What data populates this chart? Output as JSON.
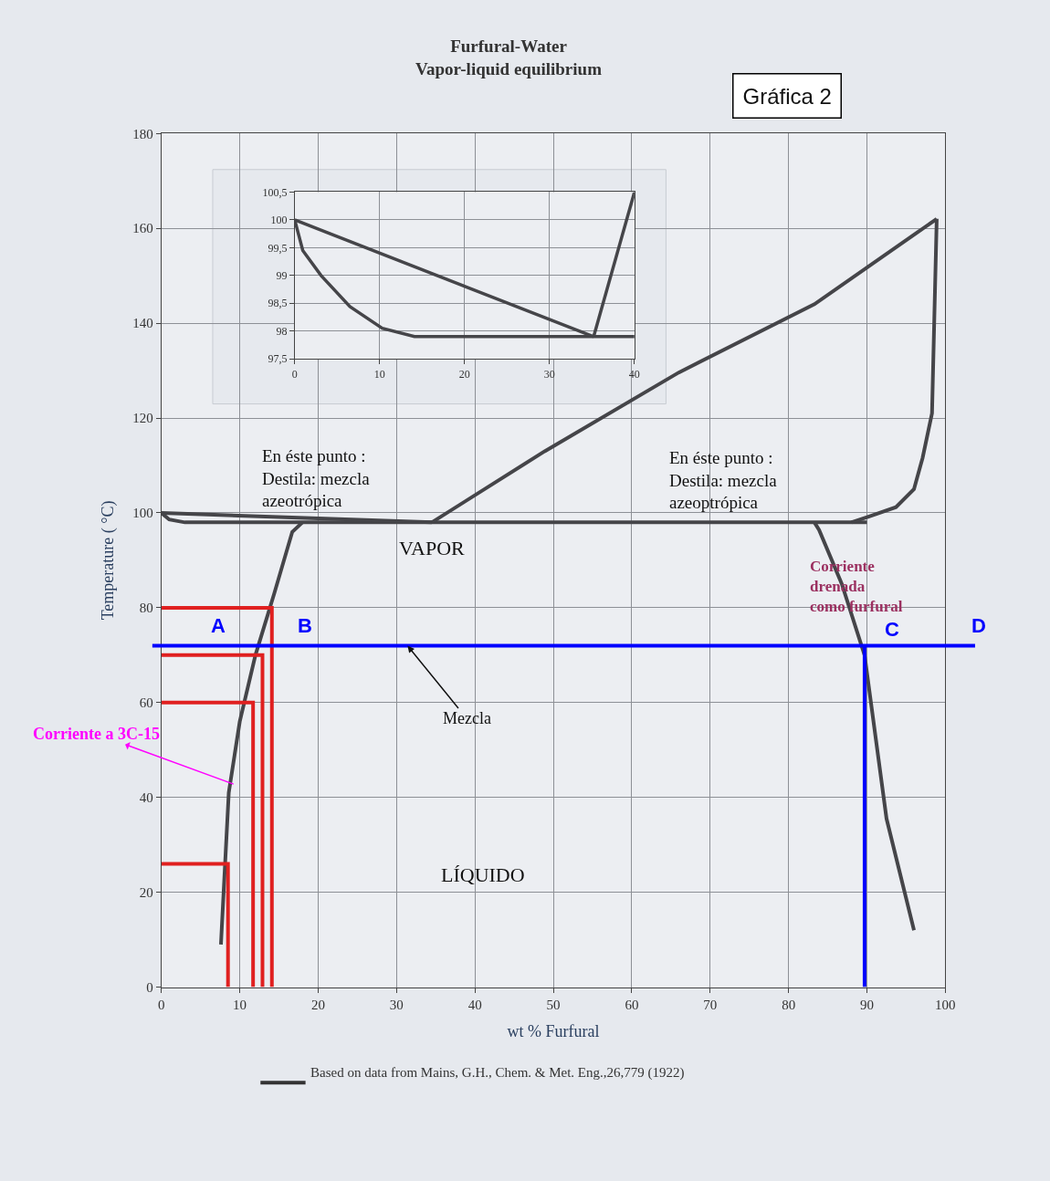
{
  "chart_data": [
    {
      "type": "line",
      "title": "Furfural-Water\nVapor-liquid equilibrium",
      "xlabel": "wt % Furfural",
      "ylabel": "Temperature ( °C)",
      "xlim": [
        0,
        100
      ],
      "xticks": [
        0,
        10,
        20,
        30,
        40,
        50,
        60,
        70,
        80,
        90,
        100
      ],
      "ylim": [
        0,
        180
      ],
      "yticks": [
        0,
        20,
        40,
        60,
        80,
        100,
        120,
        140,
        160,
        180
      ],
      "grid": true,
      "marker": "none",
      "line_style": "solid",
      "series": [
        {
          "color": "#454549",
          "x": [
            7.6,
            8.6,
            10,
            12,
            14.4,
            16.7,
            18
          ],
          "values": [
            9,
            41,
            56,
            70,
            83,
            96,
            98
          ]
        },
        {
          "color": "#454549",
          "x": [
            0,
            1,
            3,
            90
          ],
          "values": [
            100,
            98.6,
            98,
            98
          ]
        },
        {
          "color": "#454549",
          "x": [
            0,
            34.5
          ],
          "values": [
            100,
            98
          ]
        },
        {
          "color": "#454549",
          "x": [
            34.5,
            48.9,
            66,
            83.3,
            98.9
          ],
          "values": [
            98,
            113,
            129.6,
            144,
            162
          ]
        },
        {
          "color": "#454549",
          "x": [
            98.9,
            98.3,
            97.1,
            96,
            93.7,
            90.2,
            88
          ],
          "values": [
            162,
            121,
            111.6,
            105,
            101.2,
            99.2,
            98
          ]
        },
        {
          "color": "#454549",
          "x": [
            83.3,
            83.9,
            86.8,
            89.7,
            92.5,
            96
          ],
          "values": [
            98,
            96.4,
            85,
            70,
            35.5,
            12
          ]
        },
        {
          "color": "#e02020",
          "x": [
            0,
            14.1,
            14.1
          ],
          "values": [
            80,
            80,
            0
          ]
        },
        {
          "color": "#e02020",
          "x": [
            0,
            12.9,
            12.9
          ],
          "values": [
            70,
            70,
            0
          ]
        },
        {
          "color": "#e02020",
          "x": [
            0,
            11.7,
            11.7
          ],
          "values": [
            60,
            60,
            0
          ]
        },
        {
          "color": "#e02020",
          "x": [
            0,
            8.5,
            8.5
          ],
          "values": [
            26,
            26,
            0
          ]
        },
        {
          "color": "#0000ff",
          "x": [
            89.7,
            89.7
          ],
          "values": [
            72,
            0
          ]
        }
      ],
      "ref_lines": [
        {
          "axis": "y",
          "value": 72,
          "color": "#0000ff"
        }
      ],
      "annotations": [
        "En éste punto :\nDestila: mezcla\nazeotrópica",
        "VAPOR",
        "En éste punto :\nDestila: mezcla\nazeoptrópica",
        "Corriente\ndrenada\ncomo furfural",
        "A",
        "B",
        "C",
        "D",
        {
          "text": "Corriente a 3C-15",
          "x": 9.2,
          "y": 42.8
        },
        {
          "text": "Mezcla",
          "x": 31.4,
          "y": 72
        },
        "LÍQUIDO",
        "Gráfica 2",
        "Based on data from Mains, G.H., Chem. & Met. Eng.,26,779 (1922)"
      ]
    },
    {
      "type": "line",
      "xlim": [
        0,
        40
      ],
      "xticks": [
        0,
        10,
        20,
        30,
        40
      ],
      "ylim": [
        97.5,
        100.5
      ],
      "yticks": [
        {
          "value": 97.5,
          "label": "97,5"
        },
        98,
        {
          "value": 98.5,
          "label": "98,5"
        },
        99,
        {
          "value": 99.5,
          "label": "99,5"
        },
        100,
        {
          "value": 100.5,
          "label": "100,5"
        }
      ],
      "grid": true,
      "marker": "none",
      "series": [
        {
          "color": "#454549",
          "x": [
            0,
            35.2
          ],
          "values": [
            100,
            97.9
          ]
        },
        {
          "color": "#454549",
          "x": [
            35.2,
            40
          ],
          "values": [
            97.9,
            100.5
          ]
        },
        {
          "color": "#454549",
          "x": [
            0,
            0.95,
            3.1,
            6.5,
            10.3,
            14.1,
            40
          ],
          "values": [
            100,
            99.45,
            99.0,
            98.44,
            98.05,
            97.9,
            97.9
          ]
        }
      ]
    }
  ]
}
